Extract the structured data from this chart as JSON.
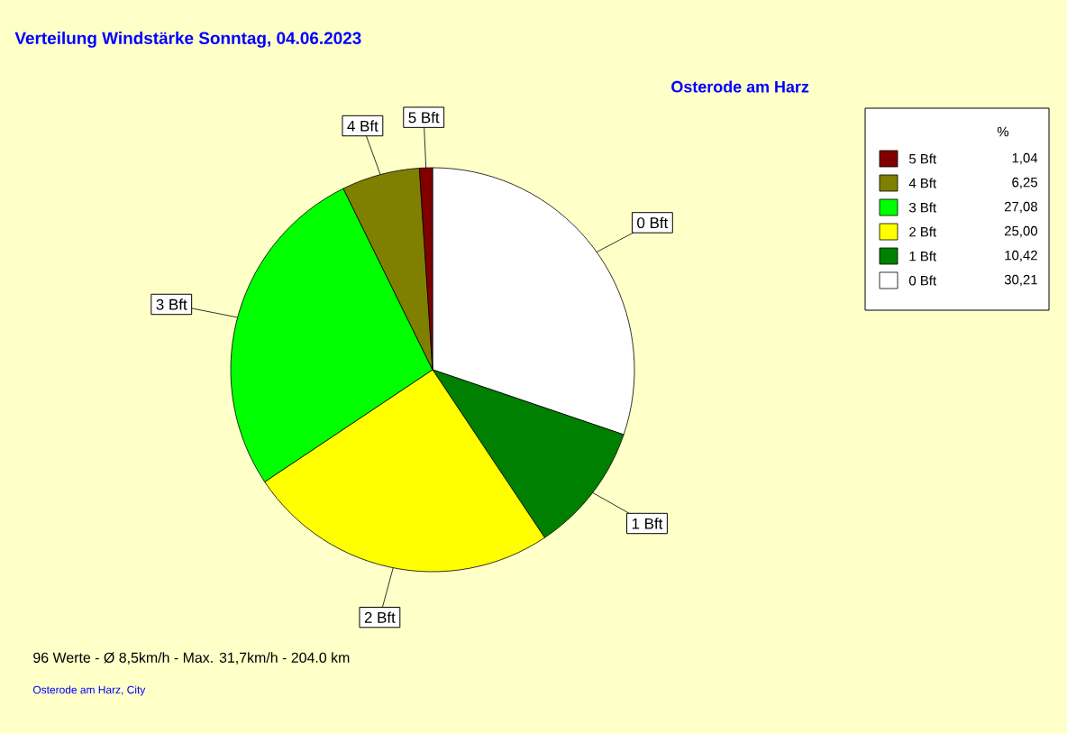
{
  "chart_data": {
    "type": "pie",
    "title": "Verteilung Windstärke  Sonntag, 04.06.2023",
    "subtitle": "Osterode am Harz",
    "legend_title": "%",
    "categories": [
      "0 Bft",
      "1 Bft",
      "2 Bft",
      "3 Bft",
      "4 Bft",
      "5 Bft"
    ],
    "values": [
      30.21,
      10.42,
      25.0,
      27.08,
      6.25,
      1.04
    ],
    "value_labels": [
      "30,21",
      "10,42",
      "25,00",
      "27,08",
      "6,25",
      "1,04"
    ],
    "colors": [
      "#ffffff",
      "#008000",
      "#ffff00",
      "#00ff00",
      "#808000",
      "#800000"
    ],
    "legend": "top right",
    "annotations": [
      "96 Werte  -  Ø 8,5km/h  -  Max. 31,7km/h  -  204.0 km",
      "Osterode am Harz, City"
    ]
  }
}
